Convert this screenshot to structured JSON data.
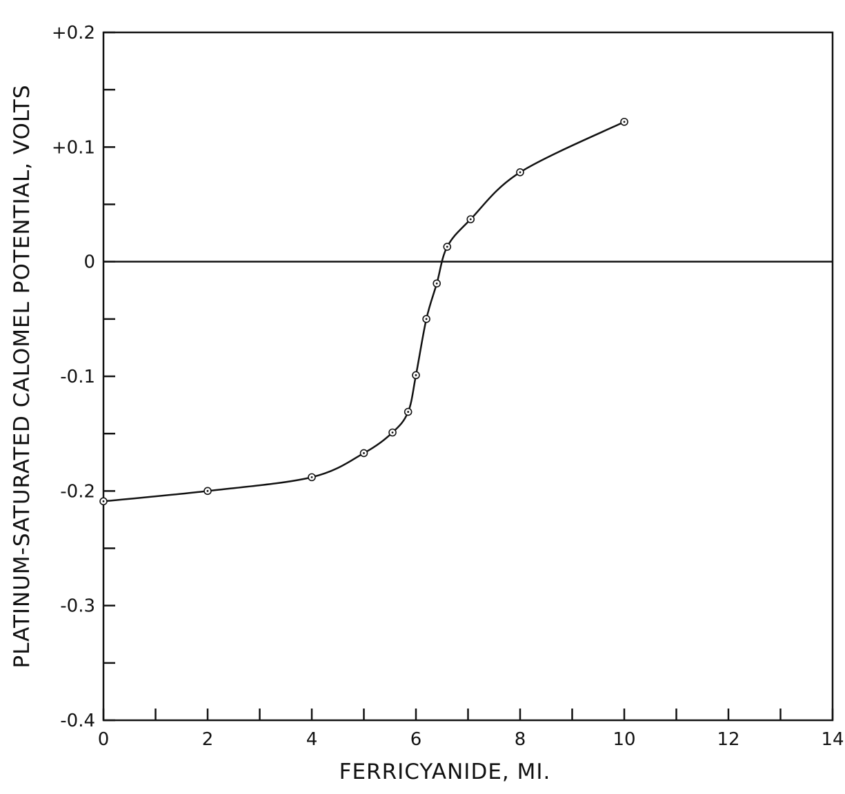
{
  "chart_data": {
    "type": "line",
    "title": "",
    "xlabel": "FERRICYANIDE, MI.",
    "ylabel": "PLATINUM-SATURATED CALOMEL POTENTIAL, VOLTS",
    "xlim": [
      0,
      14
    ],
    "ylim": [
      -0.4,
      0.2
    ],
    "x_tick_labels": [
      {
        "value": 0,
        "label": "0"
      },
      {
        "value": 2,
        "label": "2"
      },
      {
        "value": 4,
        "label": "4"
      },
      {
        "value": 6,
        "label": "6"
      },
      {
        "value": 8,
        "label": "8"
      },
      {
        "value": 10,
        "label": "10"
      },
      {
        "value": 12,
        "label": "12"
      },
      {
        "value": 14,
        "label": "14"
      }
    ],
    "x_minor_step": 1,
    "y_tick_labels": [
      {
        "value": 0.2,
        "label": "+0.2"
      },
      {
        "value": 0.1,
        "label": "+0.1"
      },
      {
        "value": 0,
        "label": "0"
      },
      {
        "value": -0.1,
        "label": "-0.1"
      },
      {
        "value": -0.2,
        "label": "-0.2"
      },
      {
        "value": -0.3,
        "label": "-0.3"
      },
      {
        "value": -0.4,
        "label": "-0.4"
      }
    ],
    "y_minor_step": 0.05,
    "grid": false,
    "reference_line_y": 0,
    "series": [
      {
        "points": [
          {
            "x": 0,
            "y": -0.209
          },
          {
            "x": 2,
            "y": -0.2
          },
          {
            "x": 4,
            "y": -0.188
          },
          {
            "x": 5,
            "y": -0.167
          },
          {
            "x": 5.55,
            "y": -0.149
          },
          {
            "x": 5.85,
            "y": -0.131
          },
          {
            "x": 6,
            "y": -0.099
          },
          {
            "x": 6.2,
            "y": -0.05
          },
          {
            "x": 6.4,
            "y": -0.019
          },
          {
            "x": 6.6,
            "y": 0.013
          },
          {
            "x": 7.05,
            "y": 0.037
          },
          {
            "x": 8,
            "y": 0.078
          },
          {
            "x": 10,
            "y": 0.122
          }
        ]
      }
    ]
  }
}
